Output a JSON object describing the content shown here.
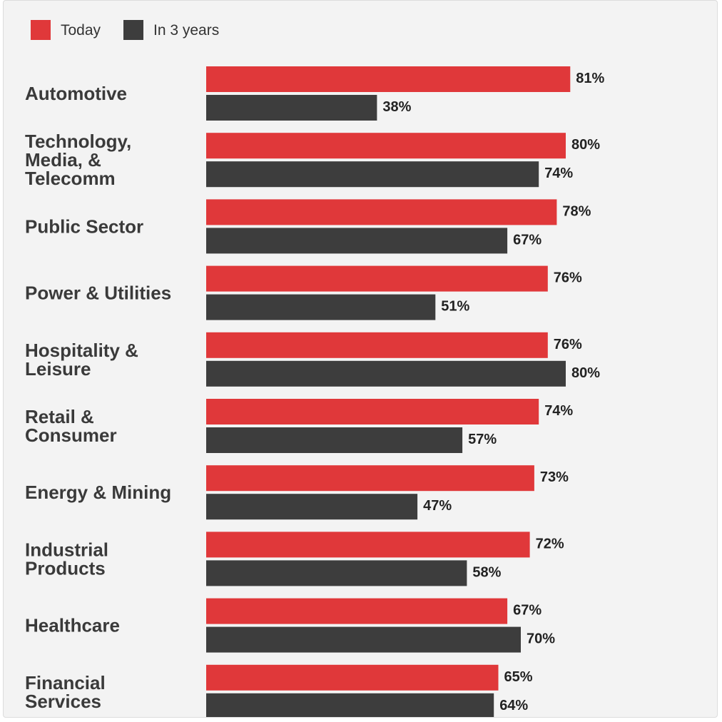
{
  "chart_data": {
    "type": "bar",
    "orientation": "horizontal",
    "categories": [
      [
        "Automotive"
      ],
      [
        "Technology,",
        "Media, &",
        "Telecomm"
      ],
      [
        "Public Sector"
      ],
      [
        "Power & Utilities"
      ],
      [
        "Hospitality &",
        "Leisure"
      ],
      [
        "Retail &",
        "Consumer"
      ],
      [
        "Energy & Mining"
      ],
      [
        "Industrial",
        "Products"
      ],
      [
        "Healthcare"
      ],
      [
        "Financial",
        "Services"
      ]
    ],
    "series": [
      {
        "name": "Today",
        "color": "#e0383a",
        "values": [
          81,
          80,
          78,
          76,
          76,
          74,
          73,
          72,
          67,
          65
        ]
      },
      {
        "name": "In 3 years",
        "color": "#3d3d3d",
        "values": [
          38,
          74,
          67,
          51,
          80,
          57,
          47,
          58,
          70,
          64
        ]
      }
    ],
    "value_suffix": "%",
    "xlim": [
      0,
      100
    ],
    "legend_position": "top-left",
    "grid": false
  }
}
